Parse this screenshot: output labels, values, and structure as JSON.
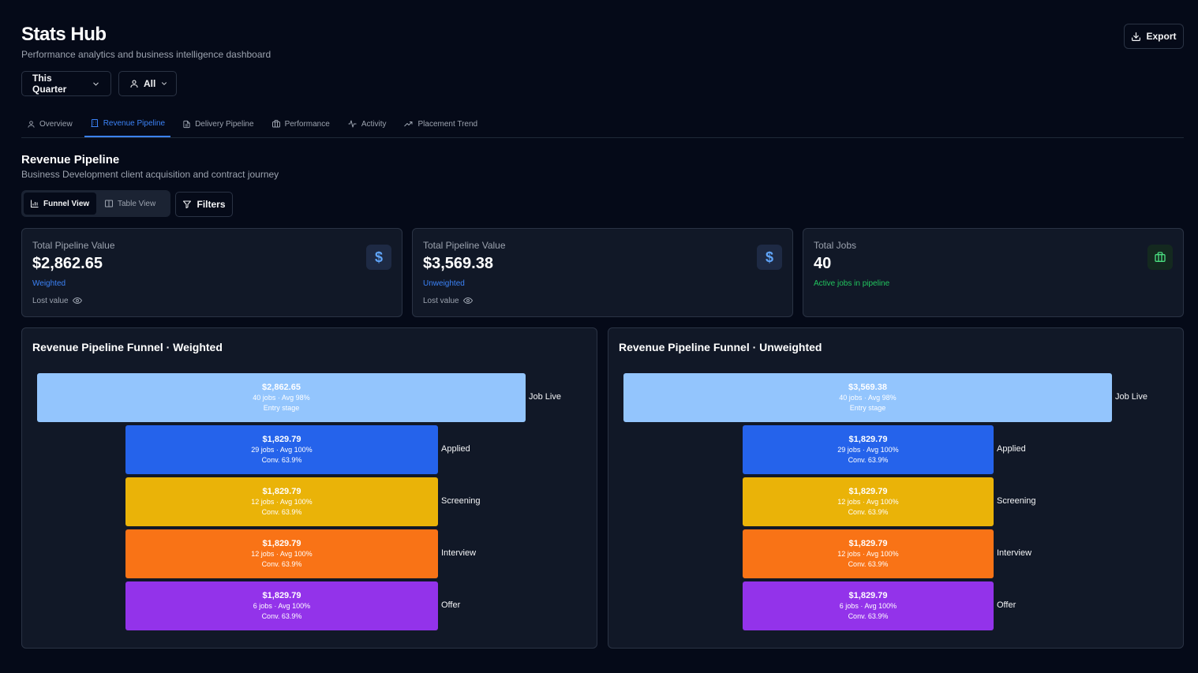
{
  "app": {
    "title": "Stats Hub",
    "subtitle": "Performance analytics and business intelligence dashboard"
  },
  "header": {
    "export_label": "Export",
    "export_icon": "download-icon"
  },
  "filters": {
    "period_label": "This Quarter",
    "user_label": "All"
  },
  "tabs": [
    {
      "label": "Overview",
      "icon": "user-icon",
      "active": false
    },
    {
      "label": "Revenue Pipeline",
      "icon": "building-icon",
      "active": true
    },
    {
      "label": "Delivery Pipeline",
      "icon": "document-icon",
      "active": false
    },
    {
      "label": "Performance",
      "icon": "briefcase-icon",
      "active": false
    },
    {
      "label": "Activity",
      "icon": "pulse-icon",
      "active": false
    },
    {
      "label": "Placement Trend",
      "icon": "trend-up-icon",
      "active": false
    }
  ],
  "section": {
    "title": "Revenue Pipeline",
    "subtitle": "Business Development client acquisition and contract journey"
  },
  "views": {
    "funnel_label": "Funnel View",
    "table_label": "Table View",
    "filters_label": "Filters",
    "active": "funnel"
  },
  "cards": [
    {
      "label": "Total Pipeline Value",
      "value": "$2,862.65",
      "note": "Weighted",
      "note_color": "#3b82f6",
      "lost_label": "Lost value",
      "icon": "dollar-icon",
      "icon_glyph": "$"
    },
    {
      "label": "Total Pipeline Value",
      "value": "$3,569.38",
      "note": "Unweighted",
      "note_color": "#3b82f6",
      "lost_label": "Lost value",
      "icon": "dollar-icon",
      "icon_glyph": "$"
    },
    {
      "label": "Total Jobs",
      "value": "40",
      "note": "Active jobs in pipeline",
      "note_color": "#22c55e",
      "icon": "briefcase-icon"
    }
  ],
  "funnels": [
    {
      "title": "Revenue Pipeline Funnel · Weighted",
      "stages": [
        {
          "name": "Job Live",
          "value": "$2,862.65",
          "line1": "40 jobs · Avg 98%",
          "line2": "Entry stage",
          "color": "#93c5fd",
          "text_color": "#ffffff"
        },
        {
          "name": "Applied",
          "value": "$1,829.79",
          "line1": "29 jobs · Avg 100%",
          "line2": "Conv. 63.9%",
          "color": "#2563eb",
          "text_color": "#ffffff"
        },
        {
          "name": "Screening",
          "value": "$1,829.79",
          "line1": "12 jobs · Avg 100%",
          "line2": "Conv. 63.9%",
          "color": "#eab308",
          "text_color": "#ffffff"
        },
        {
          "name": "Interview",
          "value": "$1,829.79",
          "line1": "12 jobs · Avg 100%",
          "line2": "Conv. 63.9%",
          "color": "#f97316",
          "text_color": "#ffffff"
        },
        {
          "name": "Offer",
          "value": "$1,829.79",
          "line1": "6 jobs · Avg 100%",
          "line2": "Conv. 63.9%",
          "color": "#9333ea",
          "text_color": "#ffffff"
        }
      ]
    },
    {
      "title": "Revenue Pipeline Funnel · Unweighted",
      "stages": [
        {
          "name": "Job Live",
          "value": "$3,569.38",
          "line1": "40 jobs · Avg 98%",
          "line2": "Entry stage",
          "color": "#93c5fd",
          "text_color": "#ffffff"
        },
        {
          "name": "Applied",
          "value": "$1,829.79",
          "line1": "29 jobs · Avg 100%",
          "line2": "Conv. 63.9%",
          "color": "#2563eb",
          "text_color": "#ffffff"
        },
        {
          "name": "Screening",
          "value": "$1,829.79",
          "line1": "12 jobs · Avg 100%",
          "line2": "Conv. 63.9%",
          "color": "#eab308",
          "text_color": "#ffffff"
        },
        {
          "name": "Interview",
          "value": "$1,829.79",
          "line1": "12 jobs · Avg 100%",
          "line2": "Conv. 63.9%",
          "color": "#f97316",
          "text_color": "#ffffff"
        },
        {
          "name": "Offer",
          "value": "$1,829.79",
          "line1": "6 jobs · Avg 100%",
          "line2": "Conv. 63.9%",
          "color": "#9333ea",
          "text_color": "#ffffff"
        }
      ]
    }
  ]
}
